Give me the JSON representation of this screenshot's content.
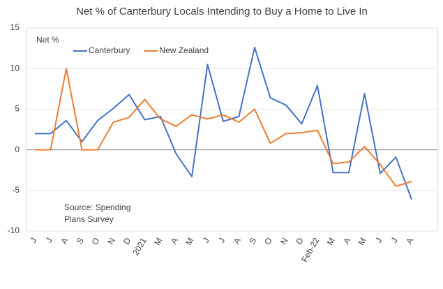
{
  "chart_data": {
    "type": "line",
    "title": "Net % of Canterbury Locals Intending to Buy a Home to Live In",
    "y_label": "Net %",
    "annotation": [
      "Source: Spending",
      "Plans Survey"
    ],
    "categories": [
      "J",
      "J",
      "A",
      "S",
      "O",
      "N",
      "D",
      "2021",
      "M",
      "A",
      "M",
      "J",
      "J",
      "A",
      "S",
      "O",
      "N",
      "D",
      "Feb-22",
      "M",
      "A",
      "M",
      "J",
      "J",
      "A"
    ],
    "series": [
      {
        "name": "Canterbury",
        "color": "#4472c4",
        "values": [
          2.0,
          2.0,
          3.6,
          1.0,
          3.6,
          5.1,
          6.8,
          3.7,
          4.1,
          -0.5,
          -3.3,
          10.5,
          3.5,
          4.1,
          12.6,
          6.4,
          5.5,
          3.2,
          7.9,
          -2.8,
          -2.8,
          6.9,
          -2.9,
          -0.9,
          -6.1
        ]
      },
      {
        "name": "New Zealand",
        "color": "#ed7d31",
        "values": [
          0,
          0,
          10.0,
          0,
          0,
          3.4,
          4.0,
          6.2,
          3.8,
          2.9,
          4.3,
          3.8,
          4.3,
          3.4,
          5.0,
          0.8,
          2.0,
          2.1,
          2.4,
          -1.7,
          -1.5,
          0.4,
          -1.8,
          -4.5,
          -3.9
        ]
      }
    ],
    "ylim": [
      -10,
      15
    ],
    "yticks": [
      -10,
      -5,
      0,
      5,
      10,
      15
    ],
    "grid": true,
    "legend": "top"
  }
}
